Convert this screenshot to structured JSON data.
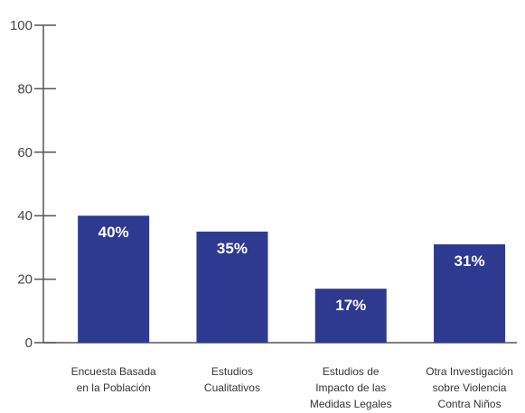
{
  "chart_data": {
    "type": "bar",
    "categories": [
      "Encuesta Basada\nen la Población",
      "Estudios\nCualitativos",
      "Estudios de\nImpacto de las\nMedidas Legales",
      "Otra Investigación\nsobre Violencia\nContra Niños"
    ],
    "values": [
      40,
      35,
      17,
      31
    ],
    "value_labels": [
      "40%",
      "35%",
      "17%",
      "31%"
    ],
    "color": "#2e3a8f",
    "ylim": [
      0,
      100
    ],
    "yticks": [
      0,
      20,
      40,
      60,
      80,
      100
    ],
    "grid": false
  }
}
